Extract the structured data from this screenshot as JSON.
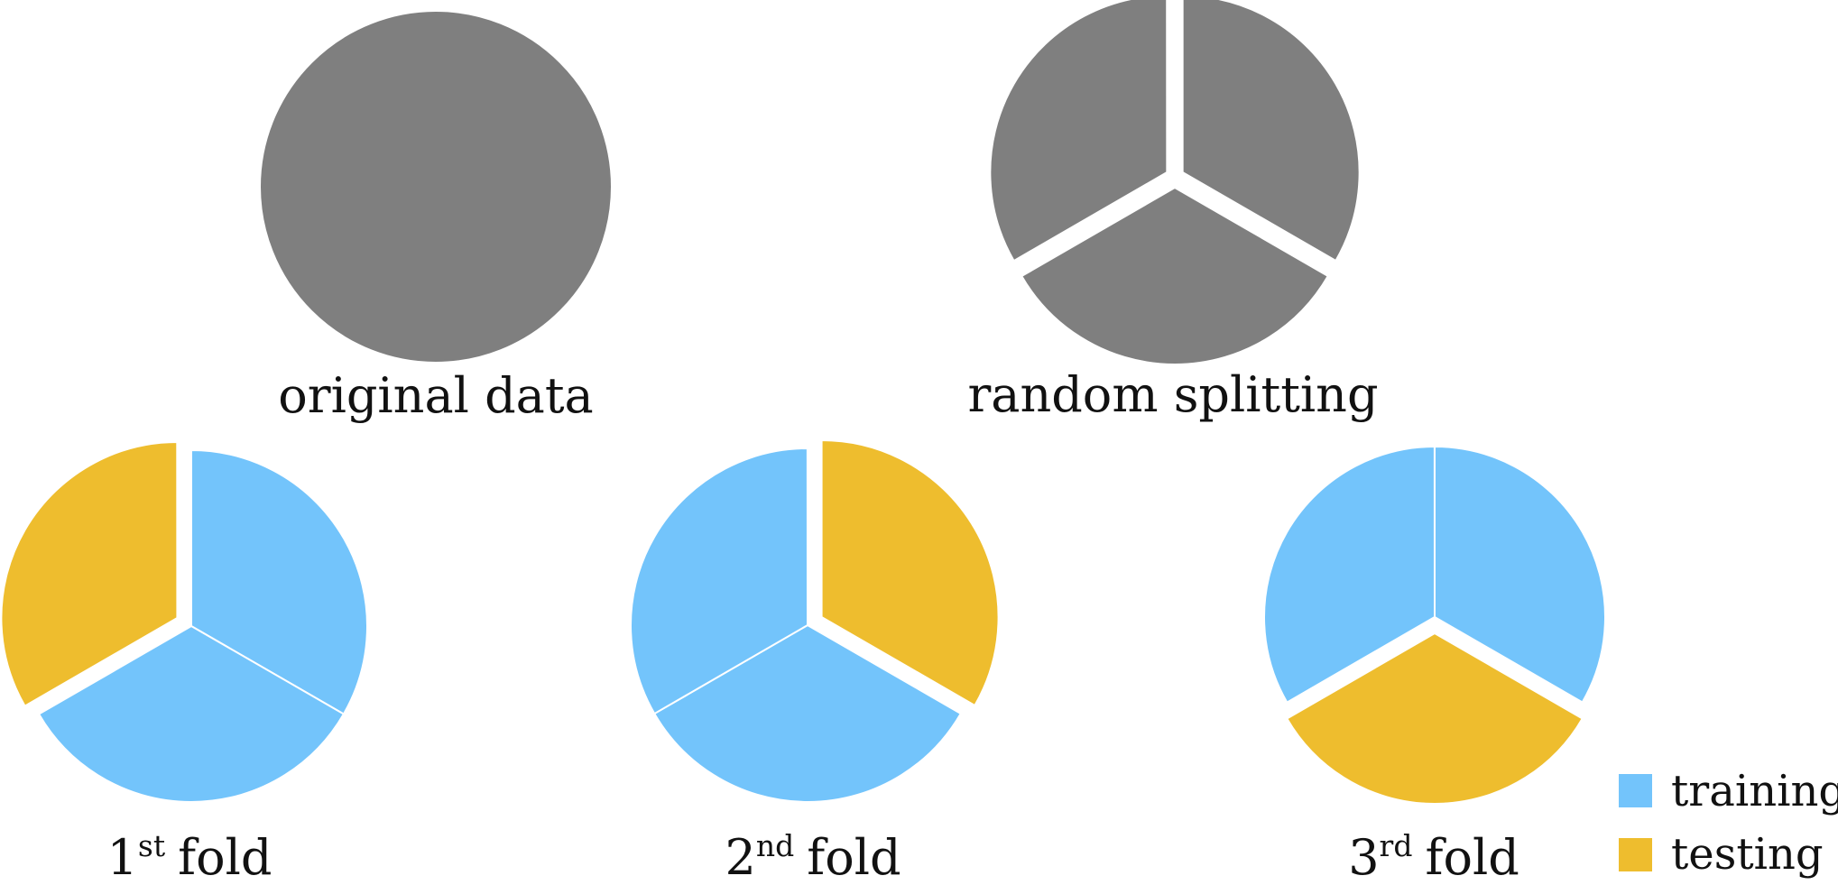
{
  "colors": {
    "data": "#7f7f7f",
    "training": "#73c4fb",
    "testing": "#eebd2e",
    "background": "#ffffff",
    "text": "#111111"
  },
  "top_row": [
    {
      "caption": "original data",
      "segments": [
        {
          "role": "data",
          "fraction": 1
        }
      ]
    },
    {
      "caption": "random splitting",
      "segments": [
        {
          "role": "data",
          "fraction": 0.3333
        },
        {
          "role": "data",
          "fraction": 0.3333
        },
        {
          "role": "data",
          "fraction": 0.3333
        }
      ]
    }
  ],
  "folds": [
    {
      "number": "1",
      "suffix": "st",
      "word": "fold",
      "segments": [
        {
          "role": "training",
          "fraction": 0.3333
        },
        {
          "role": "training",
          "fraction": 0.3333
        },
        {
          "role": "testing",
          "fraction": 0.3333
        }
      ]
    },
    {
      "number": "2",
      "suffix": "nd",
      "word": "fold",
      "segments": [
        {
          "role": "testing",
          "fraction": 0.3333
        },
        {
          "role": "training",
          "fraction": 0.3333
        },
        {
          "role": "training",
          "fraction": 0.3333
        }
      ]
    },
    {
      "number": "3",
      "suffix": "rd",
      "word": "fold",
      "segments": [
        {
          "role": "training",
          "fraction": 0.3333
        },
        {
          "role": "testing",
          "fraction": 0.3333
        },
        {
          "role": "training",
          "fraction": 0.3333
        }
      ]
    }
  ],
  "legend": {
    "training": "training",
    "testing": "testing"
  }
}
